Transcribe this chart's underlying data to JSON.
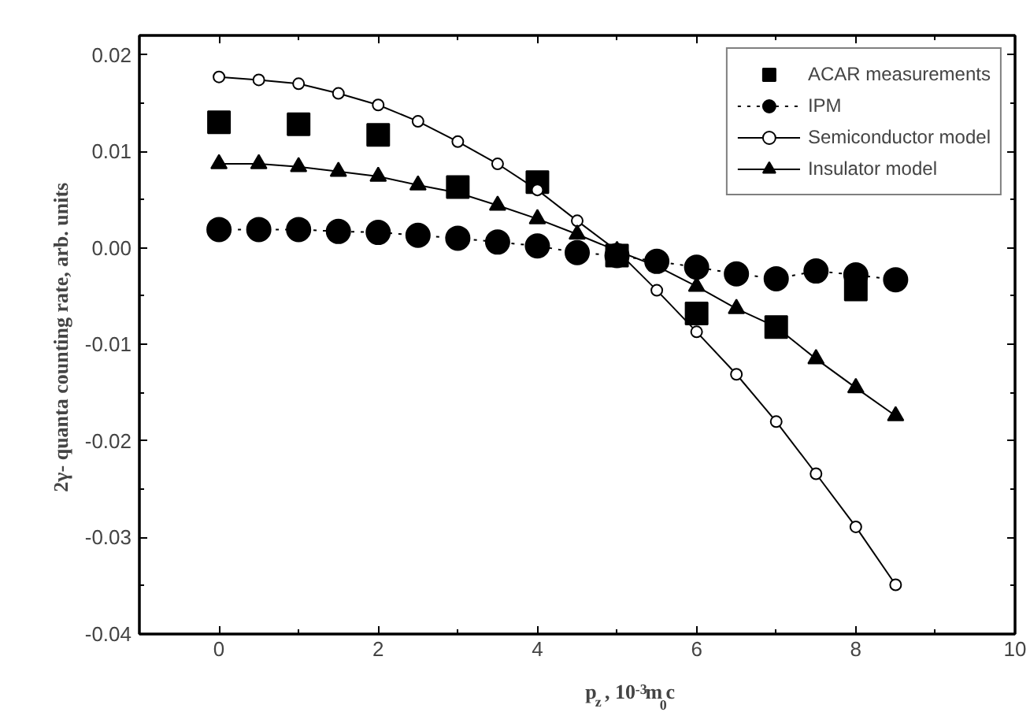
{
  "chart_data": {
    "type": "line",
    "xlabel": "p$_{z}$ ,  10$^{-3}$m$_{0}$c",
    "ylabel": "2γ- quanta counting rate,  arb. units",
    "xlim": [
      -1,
      10
    ],
    "ylim": [
      -0.04,
      0.022
    ],
    "xticks": [
      0,
      2,
      4,
      6,
      8,
      10
    ],
    "yticks": [
      {
        "value": -0.04,
        "label": "-0.04"
      },
      {
        "value": -0.03,
        "label": "-0.03"
      },
      {
        "value": -0.02,
        "label": "-0.02"
      },
      {
        "value": -0.01,
        "label": "-0.01"
      },
      {
        "value": 0,
        "label": "0.00"
      },
      {
        "value": 0.01,
        "label": "0.01"
      },
      {
        "value": 0.02,
        "label": "0.02"
      }
    ],
    "grid": false,
    "legend": "top right",
    "series": [
      {
        "name": "ACAR measurements",
        "type": "scatter",
        "marker": "square",
        "color": "#000000",
        "x": [
          0,
          1,
          2,
          3,
          4,
          5,
          6,
          7,
          8
        ],
        "values": [
          0.013,
          0.0128,
          0.0117,
          0.0063,
          0.0068,
          -0.0008,
          -0.0068,
          -0.0082,
          -0.0043
        ]
      },
      {
        "name": "IPM",
        "marker": "circle",
        "line_style": "dotted",
        "color": "#000000",
        "x": [
          0,
          0.5,
          1,
          1.5,
          2,
          2.5,
          3,
          3.5,
          4,
          4.5,
          5,
          5.5,
          6,
          6.5,
          7,
          7.5,
          8,
          8.5
        ],
        "values": [
          0.0019,
          0.0019,
          0.0019,
          0.0017,
          0.0016,
          0.0013,
          0.001,
          0.0006,
          0.0002,
          -0.0005,
          -0.0008,
          -0.0014,
          -0.002,
          -0.0027,
          -0.0032,
          -0.0024,
          -0.0028,
          -0.0033
        ]
      },
      {
        "name": "Semiconductor model",
        "marker": "open_circle",
        "line_style": "solid",
        "color": "#000000",
        "x": [
          0,
          0.5,
          1,
          1.5,
          2,
          2.5,
          3,
          3.5,
          4,
          4.5,
          5,
          5.5,
          6,
          6.5,
          7,
          7.5,
          8,
          8.5
        ],
        "values": [
          0.0177,
          0.0174,
          0.017,
          0.016,
          0.0148,
          0.0131,
          0.011,
          0.0087,
          0.006,
          0.0028,
          -0.0003,
          -0.0044,
          -0.0087,
          -0.0131,
          -0.018,
          -0.0234,
          -0.0289,
          -0.0349
        ]
      },
      {
        "name": "Insulator model",
        "marker": "triangle",
        "line_style": "solid",
        "color": "#000000",
        "x": [
          0,
          0.5,
          1,
          1.5,
          2,
          2.5,
          3,
          3.5,
          4,
          4.5,
          5,
          5.5,
          6,
          6.5,
          7,
          7.5,
          8,
          8.5
        ],
        "values": [
          0.0087,
          0.0087,
          0.0084,
          0.0079,
          0.0074,
          0.0065,
          0.0057,
          0.0044,
          0.003,
          0.0014,
          -0.0003,
          -0.0019,
          -0.004,
          -0.0063,
          -0.0082,
          -0.0115,
          -0.0145,
          -0.0174
        ]
      }
    ]
  }
}
